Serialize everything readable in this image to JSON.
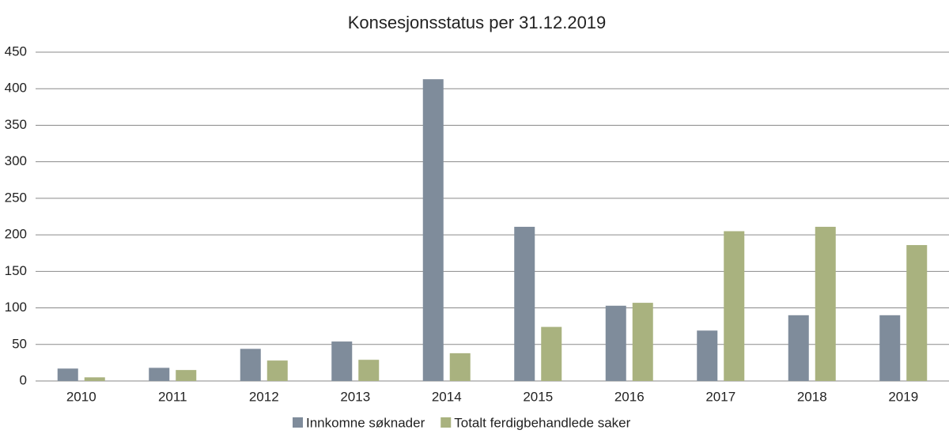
{
  "chart_data": {
    "type": "bar",
    "title": "Konsesjonsstatus per 31.12.2019",
    "categories": [
      "2010",
      "2011",
      "2012",
      "2013",
      "2014",
      "2015",
      "2016",
      "2017",
      "2018",
      "2019"
    ],
    "series": [
      {
        "name": "Innkomne søknader",
        "color": "#7f8c9b",
        "values": [
          17,
          18,
          44,
          54,
          413,
          211,
          103,
          69,
          90,
          90
        ]
      },
      {
        "name": "Totalt ferdigbehandlede saker",
        "color": "#a9b27f",
        "values": [
          5,
          15,
          28,
          29,
          38,
          74,
          107,
          205,
          211,
          186
        ]
      }
    ],
    "ylim": [
      0,
      450
    ],
    "yticks": [
      0,
      50,
      100,
      150,
      200,
      250,
      300,
      350,
      400,
      450
    ],
    "grid": true,
    "legend": "bottom"
  }
}
